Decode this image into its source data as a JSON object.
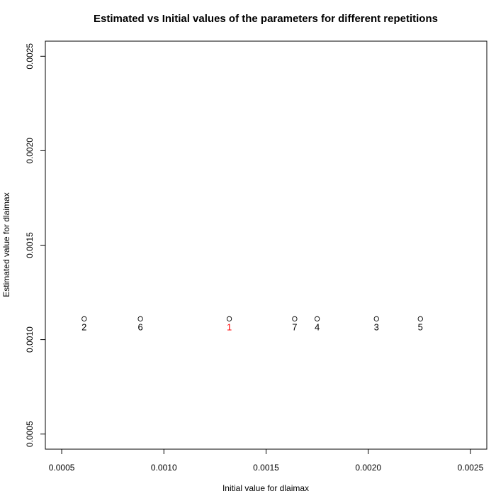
{
  "chart_data": {
    "type": "scatter",
    "title": "Estimated vs Initial values of the parameters for different repetitions",
    "xlabel": "Initial value for dlaimax",
    "ylabel": "Estimated value for dlaimax",
    "xlim": [
      0.00042,
      0.00258
    ],
    "ylim": [
      0.00042,
      0.00258
    ],
    "x_ticks": [
      0.0005,
      0.001,
      0.0015,
      0.002,
      0.0025
    ],
    "x_tick_labels": [
      "0.0005",
      "0.0010",
      "0.0015",
      "0.0020",
      "0.0025"
    ],
    "y_ticks": [
      0.0005,
      0.001,
      0.0015,
      0.002,
      0.0025
    ],
    "y_tick_labels": [
      "0.0005",
      "0.0010",
      "0.0015",
      "0.0020",
      "0.0025"
    ],
    "grid": false,
    "points": [
      {
        "label": "2",
        "x": 0.00061,
        "y": 0.00111,
        "color": "#000000"
      },
      {
        "label": "6",
        "x": 0.000885,
        "y": 0.00111,
        "color": "#000000"
      },
      {
        "label": "1",
        "x": 0.00132,
        "y": 0.00111,
        "color": "#ff0000"
      },
      {
        "label": "7",
        "x": 0.00164,
        "y": 0.00111,
        "color": "#000000"
      },
      {
        "label": "4",
        "x": 0.00175,
        "y": 0.00111,
        "color": "#000000"
      },
      {
        "label": "3",
        "x": 0.00204,
        "y": 0.00111,
        "color": "#000000"
      },
      {
        "label": "5",
        "x": 0.002255,
        "y": 0.00111,
        "color": "#000000"
      }
    ]
  }
}
